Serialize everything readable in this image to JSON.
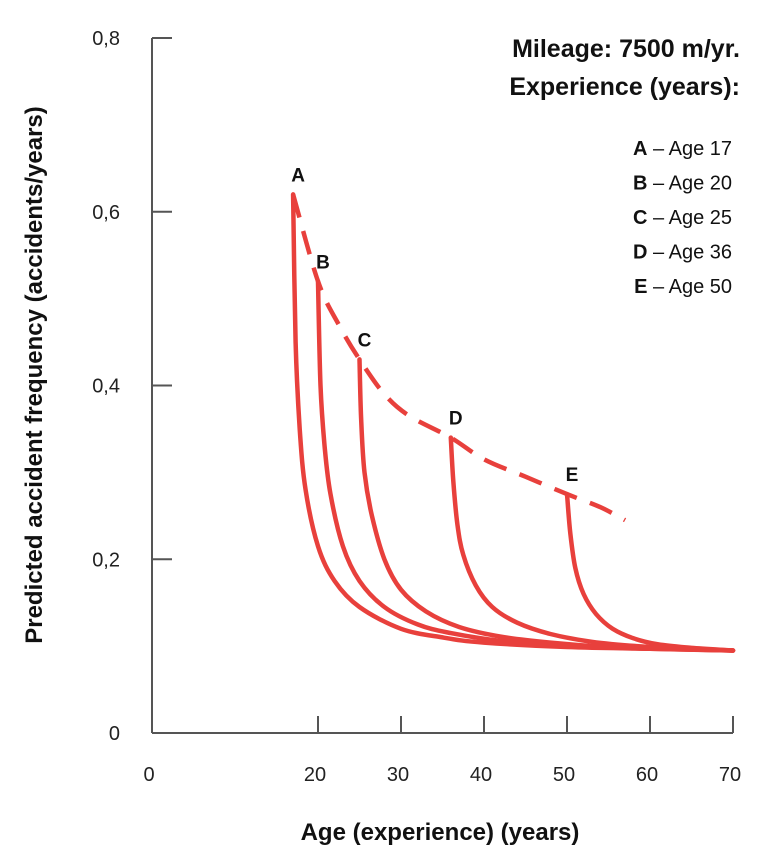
{
  "colors": {
    "curve": "#e8403c",
    "axis": "#555555",
    "text": "#111111"
  },
  "chart_data": {
    "type": "line",
    "title": "",
    "xlabel": "Age (experience) (years)",
    "ylabel": "Predicted accident frequency (accidents/years)",
    "xlim": [
      0,
      70
    ],
    "ylim": [
      0,
      0.8
    ],
    "x_ticks": [
      0,
      20,
      30,
      40,
      50,
      60,
      70
    ],
    "x_tick_labels": [
      "0",
      "20",
      "30",
      "40",
      "50",
      "60",
      "70"
    ],
    "y_ticks": [
      0,
      0.2,
      0.4,
      0.6,
      0.8
    ],
    "y_tick_labels": [
      "0",
      "0,2",
      "0,4",
      "0,6",
      "0,8"
    ],
    "grid": false,
    "legend": {
      "title_lines": [
        "Mileage: 7500 m/yr.",
        "Experience (years):"
      ],
      "placement": "top-right",
      "entries": [
        {
          "key": "A",
          "text": " – Age 17"
        },
        {
          "key": "B",
          "text": " – Age 20"
        },
        {
          "key": "C",
          "text": " – Age 25"
        },
        {
          "key": "D",
          "text": " – Age 36"
        },
        {
          "key": "E",
          "text": " – Age 50"
        }
      ]
    },
    "envelope": {
      "style": "dashed",
      "x": [
        17,
        20,
        22.5,
        25,
        28,
        31,
        36,
        40,
        45,
        50,
        54,
        57
      ],
      "y": [
        0.62,
        0.52,
        0.47,
        0.43,
        0.39,
        0.365,
        0.34,
        0.315,
        0.295,
        0.275,
        0.26,
        0.245
      ]
    },
    "series": [
      {
        "label": "A",
        "x": [
          17,
          17.3,
          17.8,
          18.5,
          20,
          22,
          25,
          30,
          35,
          40,
          50,
          60,
          70
        ],
        "y": [
          0.62,
          0.45,
          0.35,
          0.28,
          0.215,
          0.175,
          0.145,
          0.12,
          0.11,
          0.104,
          0.099,
          0.097,
          0.095
        ]
      },
      {
        "label": "B",
        "x": [
          20,
          20.3,
          20.8,
          21.5,
          23,
          25,
          28,
          32,
          36,
          42,
          50,
          60,
          70
        ],
        "y": [
          0.52,
          0.4,
          0.33,
          0.275,
          0.215,
          0.175,
          0.145,
          0.125,
          0.115,
          0.106,
          0.1,
          0.097,
          0.095
        ]
      },
      {
        "label": "C",
        "x": [
          25,
          25.2,
          25.6,
          26.5,
          28,
          30,
          33,
          37,
          42,
          48,
          55,
          62,
          70
        ],
        "y": [
          0.43,
          0.36,
          0.3,
          0.25,
          0.2,
          0.165,
          0.14,
          0.122,
          0.111,
          0.104,
          0.099,
          0.097,
          0.095
        ]
      },
      {
        "label": "D",
        "x": [
          36,
          36.3,
          36.8,
          37.5,
          39,
          41,
          44,
          48,
          53,
          60,
          70
        ],
        "y": [
          0.34,
          0.29,
          0.24,
          0.205,
          0.17,
          0.145,
          0.127,
          0.114,
          0.105,
          0.099,
          0.095
        ]
      },
      {
        "label": "E",
        "x": [
          50,
          50.4,
          51,
          52,
          53.5,
          55.5,
          58,
          61,
          65,
          70
        ],
        "y": [
          0.275,
          0.23,
          0.19,
          0.16,
          0.137,
          0.12,
          0.109,
          0.102,
          0.098,
          0.095
        ]
      }
    ],
    "point_labels": [
      {
        "text": "A",
        "x": 17,
        "y": 0.62
      },
      {
        "text": "B",
        "x": 20,
        "y": 0.52
      },
      {
        "text": "C",
        "x": 25,
        "y": 0.43
      },
      {
        "text": "D",
        "x": 36,
        "y": 0.34
      },
      {
        "text": "E",
        "x": 50,
        "y": 0.275
      }
    ]
  }
}
